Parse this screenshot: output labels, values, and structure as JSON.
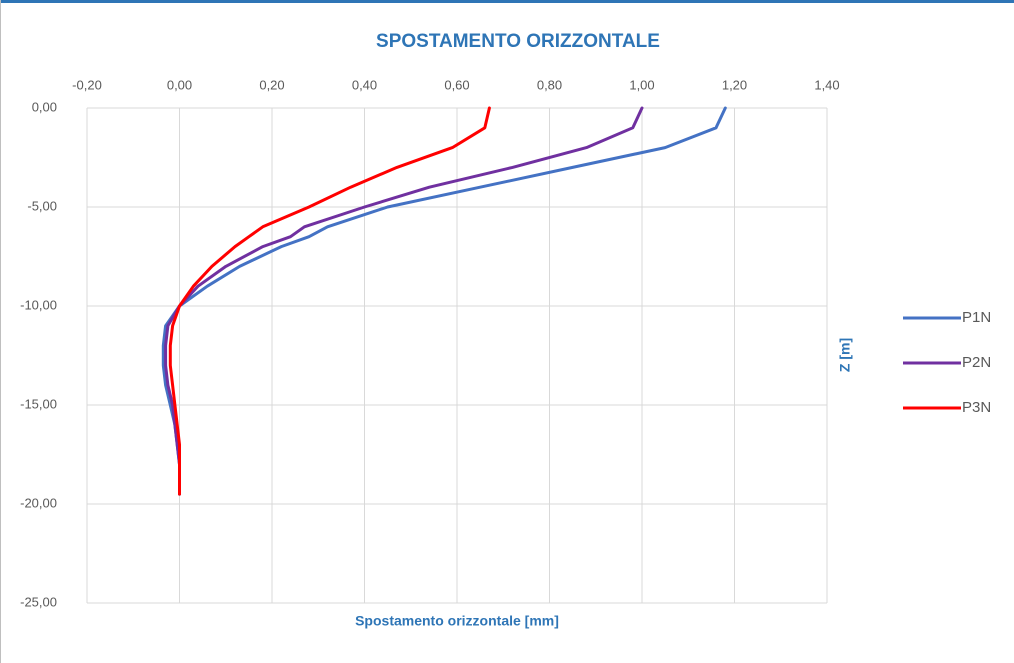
{
  "chart_data": {
    "type": "line",
    "title": "SPOSTAMENTO ORIZZONTALE",
    "x_label": "Spostamento orizzontale [mm]",
    "y_label": "Z [m]",
    "xlim": [
      -0.2,
      1.4
    ],
    "xticks": [
      {
        "value": -0.2,
        "label": "-0,20"
      },
      {
        "value": 0,
        "label": "0,00"
      },
      {
        "value": 0.2,
        "label": "0,20"
      },
      {
        "value": 0.4,
        "label": "0,40"
      },
      {
        "value": 0.6,
        "label": "0,60"
      },
      {
        "value": 0.8,
        "label": "0,80"
      },
      {
        "value": 1.0,
        "label": "1,00"
      },
      {
        "value": 1.2,
        "label": "1,20"
      },
      {
        "value": 1.4,
        "label": "1,40"
      }
    ],
    "ylim": [
      -25,
      0
    ],
    "yticks": [
      {
        "value": 0,
        "label": "0,00"
      },
      {
        "value": -5,
        "label": "-5,00"
      },
      {
        "value": -10,
        "label": "-10,00"
      },
      {
        "value": -15,
        "label": "-15,00"
      },
      {
        "value": -20,
        "label": "-20,00"
      },
      {
        "value": -25,
        "label": "-25,00"
      }
    ],
    "grid": true,
    "legend": "right",
    "series": [
      {
        "name": "P1N",
        "color": "#4472c4",
        "x": [
          1.18,
          1.16,
          1.05,
          0.85,
          0.65,
          0.45,
          0.32,
          0.28,
          0.22,
          0.13,
          0.06,
          0.0,
          -0.03,
          -0.035,
          -0.035,
          -0.03,
          -0.02,
          -0.01,
          -0.005,
          0,
          0,
          0
        ],
        "values": [
          0,
          -1,
          -2,
          -3,
          -4,
          -5,
          -6,
          -6.5,
          -7,
          -8,
          -9,
          -10,
          -11,
          -12,
          -13,
          -14,
          -15,
          -16,
          -17,
          -18,
          -19,
          -19.5
        ]
      },
      {
        "name": "P2N",
        "color": "#7030a0",
        "x": [
          1.0,
          0.98,
          0.88,
          0.72,
          0.54,
          0.4,
          0.27,
          0.24,
          0.18,
          0.1,
          0.04,
          0,
          -0.025,
          -0.03,
          -0.03,
          -0.025,
          -0.015,
          -0.01,
          -0.005,
          0,
          0,
          0
        ],
        "values": [
          0,
          -1,
          -2,
          -3,
          -4,
          -5,
          -6,
          -6.5,
          -7,
          -8,
          -9,
          -10,
          -11,
          -12,
          -13,
          -14,
          -15,
          -16,
          -17,
          -18,
          -19,
          -19.5
        ]
      },
      {
        "name": "P3N",
        "color": "#ff0000",
        "x": [
          0.67,
          0.66,
          0.59,
          0.47,
          0.37,
          0.28,
          0.18,
          0.15,
          0.12,
          0.07,
          0.03,
          0,
          -0.015,
          -0.02,
          -0.02,
          -0.015,
          -0.01,
          -0.005,
          0,
          0,
          0,
          0
        ],
        "values": [
          0,
          -1,
          -2,
          -3,
          -4,
          -5,
          -6,
          -6.5,
          -7,
          -8,
          -9,
          -10,
          -11,
          -12,
          -13,
          -14,
          -15,
          -16,
          -17,
          -18,
          -19,
          -19.5
        ]
      }
    ]
  }
}
